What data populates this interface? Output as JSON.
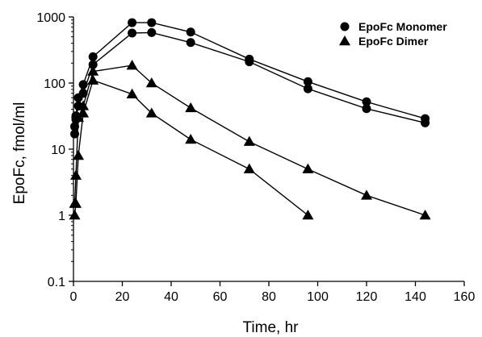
{
  "chart_data": {
    "type": "line",
    "title": "",
    "xlabel": "Time, hr",
    "ylabel": "EpoFc, fmol/ml",
    "xlim": [
      0,
      160
    ],
    "ylim": [
      0.1,
      1000
    ],
    "y_scale": "log",
    "grid": false,
    "legend_position": "top-right",
    "x_ticks": [
      "0",
      "20",
      "40",
      "60",
      "80",
      "100",
      "120",
      "140",
      "160"
    ],
    "y_ticks": [
      "0.1",
      "1",
      "10",
      "100",
      "1000"
    ],
    "series": [
      {
        "name": "EpoFc Monomer",
        "marker": "circle",
        "color": "#000000",
        "replicates": [
          {
            "x": [
              0.5,
              1,
              2,
              4,
              8,
              24,
              32,
              48,
              72,
              96,
              120,
              144
            ],
            "y": [
              22,
              32,
              60,
              95,
              250,
              820,
              820,
              590,
              230,
              105,
              52,
              29
            ]
          },
          {
            "x": [
              0.5,
              1,
              2,
              4,
              8,
              24,
              32,
              48,
              72,
              96,
              120,
              144
            ],
            "y": [
              17,
              28,
              45,
              70,
              190,
              570,
              580,
              410,
              210,
              82,
              41,
              25
            ]
          }
        ]
      },
      {
        "name": "EpoFc Dimer",
        "marker": "triangle",
        "color": "#000000",
        "replicates": [
          {
            "x": [
              0.5,
              1,
              2,
              4,
              8,
              24,
              32,
              48,
              72,
              96,
              120,
              144
            ],
            "y": [
              1.5,
              4,
              30,
              45,
              150,
              185,
              100,
              42,
              13,
              5,
              2,
              1
            ]
          },
          {
            "x": [
              0.5,
              1,
              2,
              4,
              8,
              24,
              32,
              48,
              72,
              96
            ],
            "y": [
              1,
              1.5,
              8,
              35,
              110,
              68,
              35,
              14,
              5,
              1
            ]
          }
        ]
      }
    ]
  }
}
